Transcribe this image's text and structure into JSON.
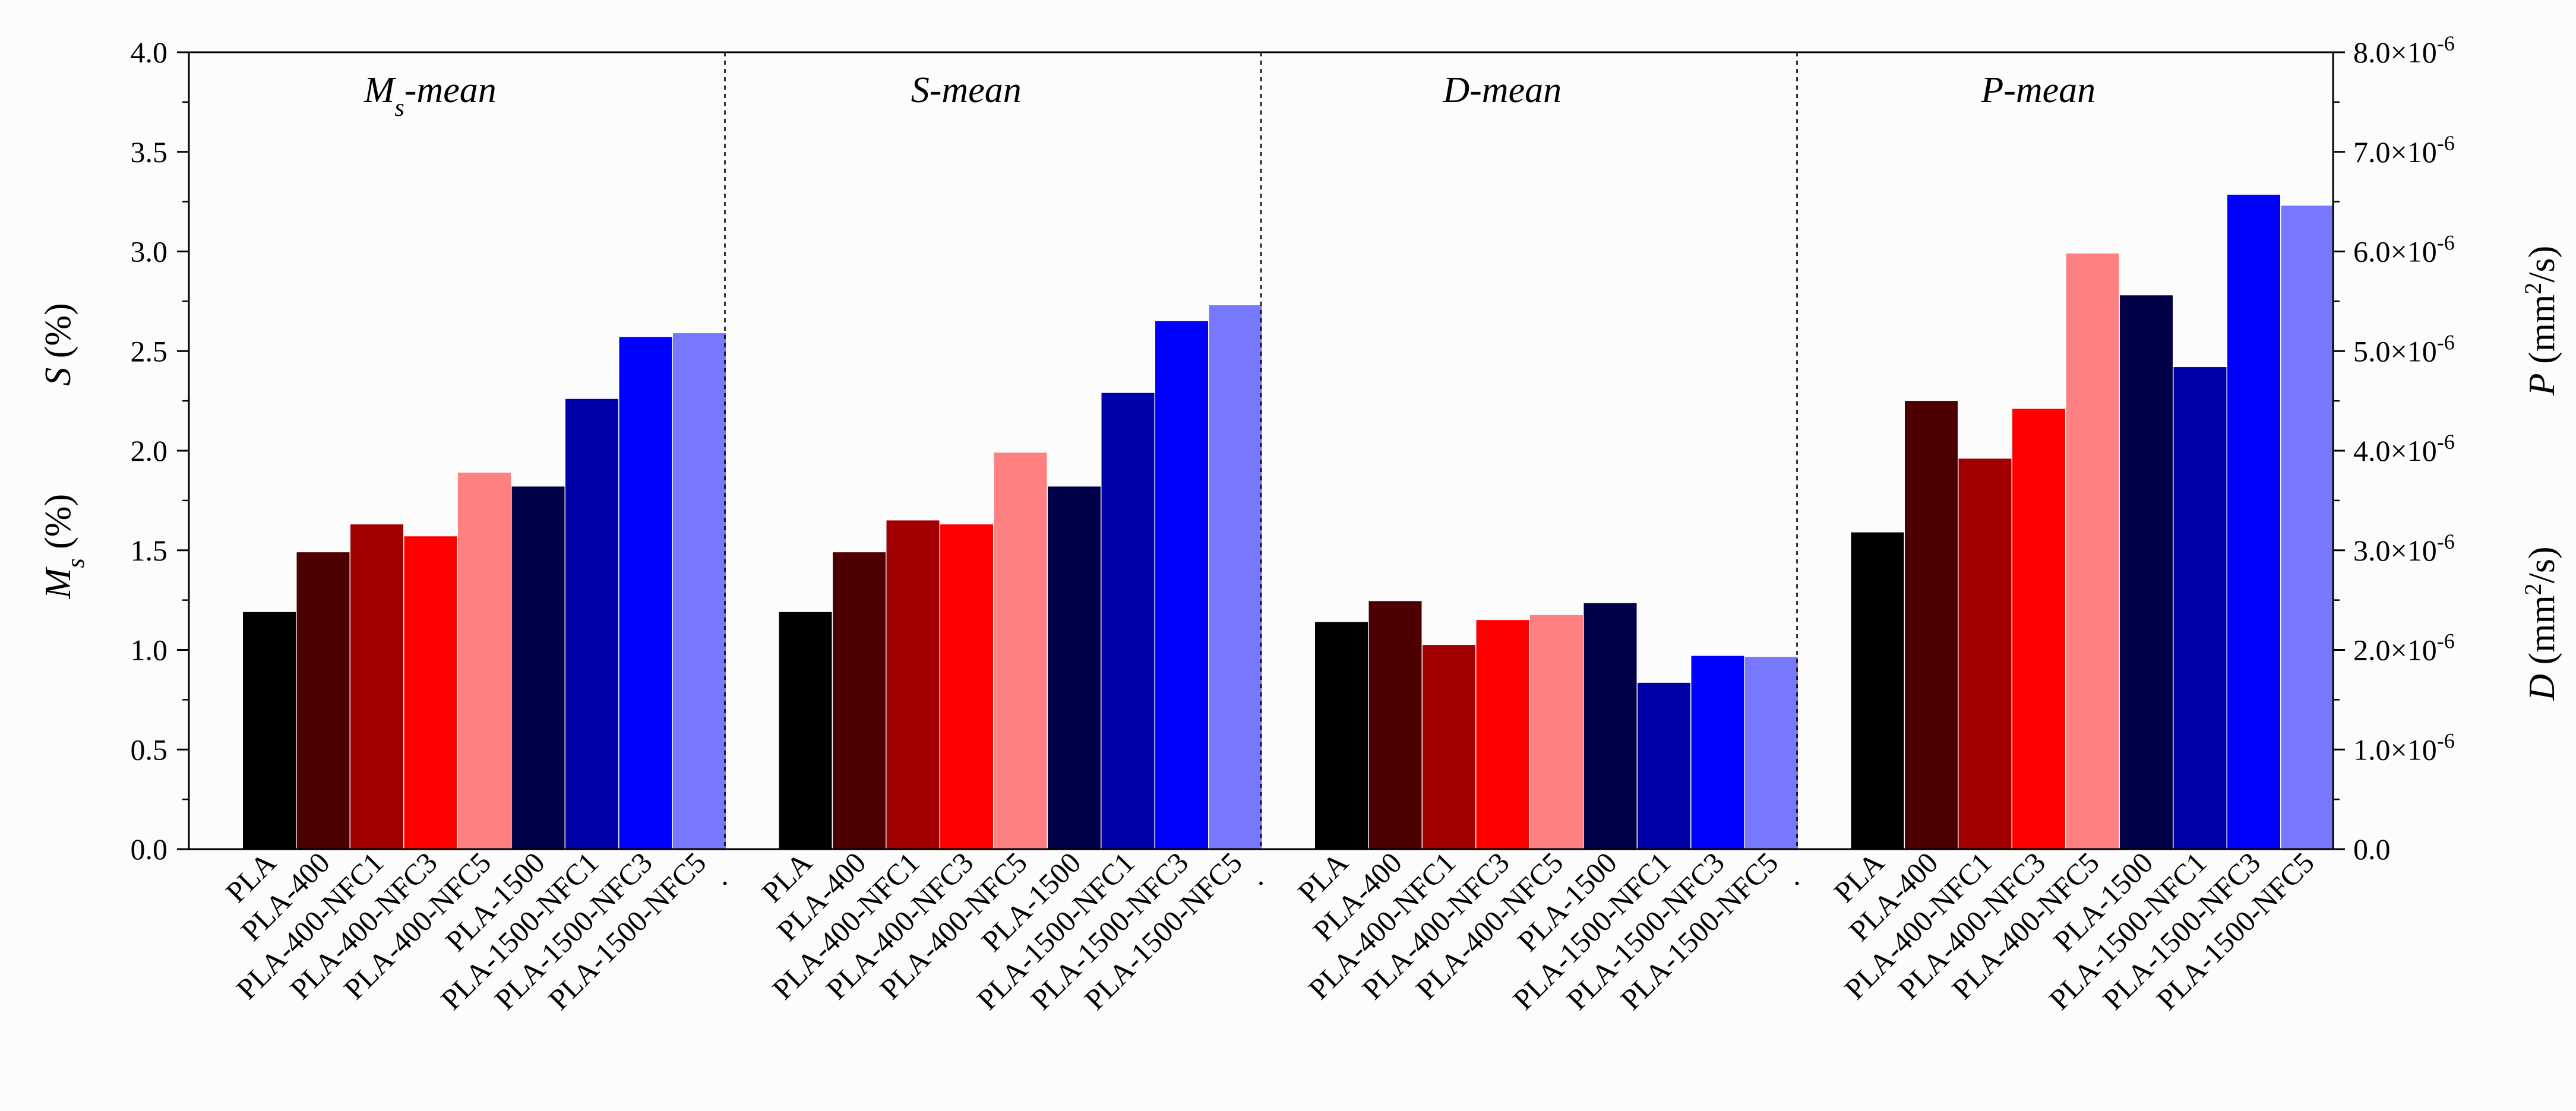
{
  "chart_data": {
    "type": "bar",
    "layout": "four side-by-side panels sharing one frame",
    "categories": [
      "PLA",
      "PLA-400",
      "PLA-400-NFC1",
      "PLA-400-NFC3",
      "PLA-400-NFC5",
      "PLA-1500",
      "PLA-1500-NFC1",
      "PLA-1500-NFC3",
      "PLA-1500-NFC5"
    ],
    "bar_colors": [
      "#000000",
      "#4d0000",
      "#a00000",
      "#ff0000",
      "#ff8080",
      "#000048",
      "#0000a8",
      "#0000ff",
      "#7878ff"
    ],
    "panels": [
      {
        "title_main": "M",
        "title_sub": "s",
        "title_rest": "-mean",
        "axis": "left",
        "values": [
          1.19,
          1.49,
          1.63,
          1.57,
          1.89,
          1.82,
          2.26,
          2.57,
          2.59
        ]
      },
      {
        "title_main": "S",
        "title_sub": "",
        "title_rest": "-mean",
        "axis": "left",
        "values": [
          1.19,
          1.49,
          1.65,
          1.63,
          1.99,
          1.82,
          2.29,
          2.65,
          2.73
        ]
      },
      {
        "title_main": "D",
        "title_sub": "",
        "title_rest": "-mean",
        "axis": "right",
        "values": [
          2.28e-06,
          2.49e-06,
          2.05e-06,
          2.3e-06,
          2.35e-06,
          2.47e-06,
          1.67e-06,
          1.94e-06,
          1.93e-06
        ]
      },
      {
        "title_main": "P",
        "title_sub": "",
        "title_rest": "-mean",
        "axis": "right",
        "values": [
          3.18e-06,
          4.5e-06,
          3.92e-06,
          4.42e-06,
          5.98e-06,
          5.56e-06,
          4.84e-06,
          6.57e-06,
          6.46e-06
        ]
      }
    ],
    "left_axis": {
      "ylim": [
        0,
        4.0
      ],
      "ticks": [
        "0.0",
        "0.5",
        "1.0",
        "1.5",
        "2.0",
        "2.5",
        "3.0",
        "3.5",
        "4.0"
      ],
      "labels": [
        {
          "main": "M",
          "sub": "s",
          "rest": " (%)"
        },
        {
          "main": "S",
          "sub": "",
          "rest": " (%)"
        }
      ]
    },
    "right_axis": {
      "ylim": [
        0,
        8e-06
      ],
      "ticks": [
        {
          "mant": "0.0",
          "exp": ""
        },
        {
          "mant": "1.0×10",
          "exp": "-6"
        },
        {
          "mant": "2.0×10",
          "exp": "-6"
        },
        {
          "mant": "3.0×10",
          "exp": "-6"
        },
        {
          "mant": "4.0×10",
          "exp": "-6"
        },
        {
          "mant": "5.0×10",
          "exp": "-6"
        },
        {
          "mant": "6.0×10",
          "exp": "-6"
        },
        {
          "mant": "7.0×10",
          "exp": "-6"
        },
        {
          "mant": "8.0×10",
          "exp": "-6"
        }
      ],
      "labels": [
        {
          "main": "D",
          "unit": " (mm",
          "sup": "2",
          "tail": "/s)"
        },
        {
          "main": "P",
          "unit": " (mm",
          "sup": "2",
          "tail": "/s)"
        }
      ]
    },
    "separator_marks": [
      ".",
      ".",
      "."
    ],
    "grid": false
  }
}
